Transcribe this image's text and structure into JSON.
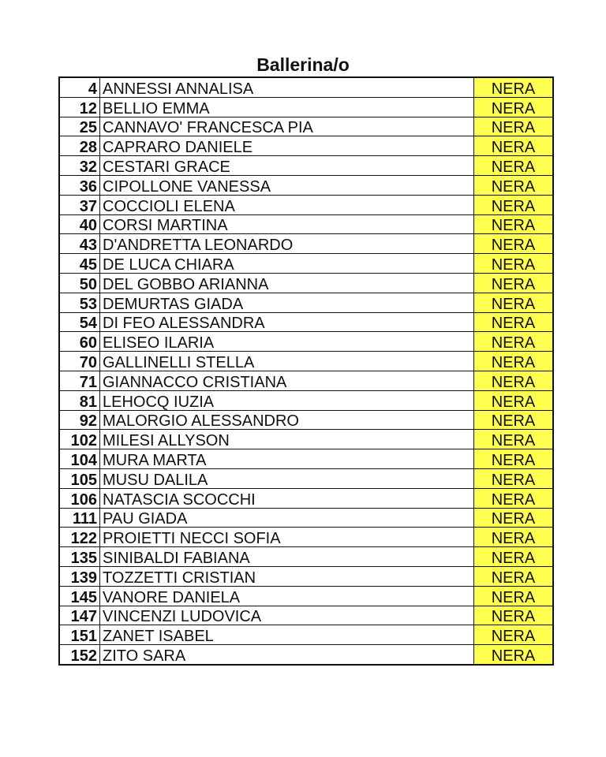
{
  "title": "Ballerina/o",
  "colors": {
    "status_fill": "#ffff50",
    "border": "#111111"
  },
  "rows": [
    {
      "number": "4",
      "name": "ANNESSI ANNALISA",
      "status": "NERA"
    },
    {
      "number": "12",
      "name": "BELLIO EMMA",
      "status": "NERA"
    },
    {
      "number": "25",
      "name": "CANNAVO' FRANCESCA PIA",
      "status": "NERA"
    },
    {
      "number": "28",
      "name": "CAPRARO DANIELE",
      "status": "NERA"
    },
    {
      "number": "32",
      "name": "CESTARI GRACE",
      "status": "NERA"
    },
    {
      "number": "36",
      "name": "CIPOLLONE VANESSA",
      "status": "NERA"
    },
    {
      "number": "37",
      "name": "COCCIOLI ELENA",
      "status": "NERA"
    },
    {
      "number": "40",
      "name": "CORSI MARTINA",
      "status": "NERA"
    },
    {
      "number": "43",
      "name": "D'ANDRETTA LEONARDO",
      "status": "NERA"
    },
    {
      "number": "45",
      "name": "DE LUCA CHIARA",
      "status": "NERA"
    },
    {
      "number": "50",
      "name": "DEL GOBBO ARIANNA",
      "status": "NERA"
    },
    {
      "number": "53",
      "name": "DEMURTAS GIADA",
      "status": "NERA"
    },
    {
      "number": "54",
      "name": "DI FEO ALESSANDRA",
      "status": "NERA"
    },
    {
      "number": "60",
      "name": "ELISEO ILARIA",
      "status": "NERA"
    },
    {
      "number": "70",
      "name": "GALLINELLI STELLA",
      "status": "NERA"
    },
    {
      "number": "71",
      "name": "GIANNACCO CRISTIANA",
      "status": "NERA"
    },
    {
      "number": "81",
      "name": "LEHOCQ IUZIA",
      "status": "NERA"
    },
    {
      "number": "92",
      "name": "MALORGIO ALESSANDRO",
      "status": "NERA"
    },
    {
      "number": "102",
      "name": "MILESI ALLYSON",
      "status": "NERA"
    },
    {
      "number": "104",
      "name": "MURA MARTA",
      "status": "NERA"
    },
    {
      "number": "105",
      "name": "MUSU DALILA",
      "status": "NERA"
    },
    {
      "number": "106",
      "name": "NATASCIA SCOCCHI",
      "status": "NERA"
    },
    {
      "number": "111",
      "name": "PAU GIADA",
      "status": "NERA"
    },
    {
      "number": "122",
      "name": "PROIETTI NECCI SOFIA",
      "status": "NERA"
    },
    {
      "number": "135",
      "name": "SINIBALDI FABIANA",
      "status": "NERA"
    },
    {
      "number": "139",
      "name": "TOZZETTI CRISTIAN",
      "status": "NERA"
    },
    {
      "number": "145",
      "name": "VANORE DANIELA",
      "status": "NERA"
    },
    {
      "number": "147",
      "name": "VINCENZI LUDOVICA",
      "status": "NERA"
    },
    {
      "number": "151",
      "name": "ZANET ISABEL",
      "status": "NERA"
    },
    {
      "number": "152",
      "name": "ZITO SARA",
      "status": "NERA"
    }
  ]
}
